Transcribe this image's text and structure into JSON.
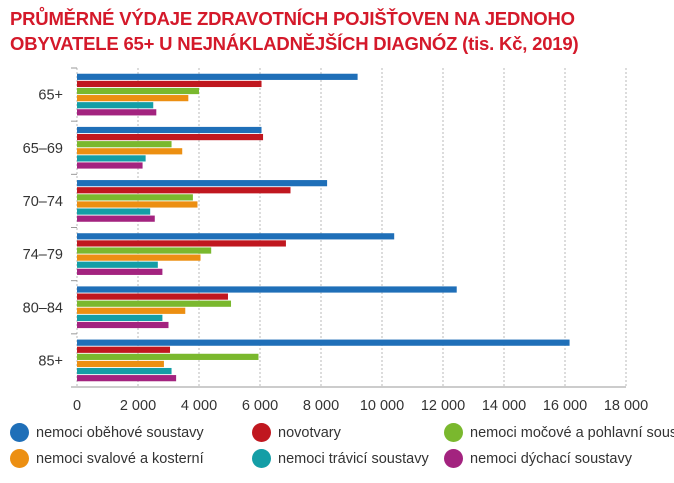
{
  "title_lines": [
    "PRŮMĚRNÉ VÝDAJE ZDRAVOTNÍCH POJIŠŤOVEN NA JEDNOHO",
    "OBYVATELE 65+ U NEJNÁKLADNĚJŠÍCH DIAGNÓZ (tis. Kč, 2019)"
  ],
  "chart_data": {
    "type": "bar",
    "orientation": "horizontal",
    "title": "PRŮMĚRNÉ VÝDAJE ZDRAVOTNÍCH POJIŠŤOVEN NA JEDNOHO OBYVATELE 65+ U NEJNÁKLADNĚJŠÍCH DIAGNÓZ (tis. Kč, 2019)",
    "categories": [
      "65+",
      "65–69",
      "70–74",
      "74–79",
      "80–84",
      "85+"
    ],
    "xlim": [
      0,
      18000
    ],
    "xticks": [
      0,
      2000,
      4000,
      6000,
      8000,
      10000,
      12000,
      14000,
      16000,
      18000
    ],
    "xtick_labels": [
      "0",
      "2 000",
      "4 000",
      "6 000",
      "8 000",
      "10 000",
      "12 000",
      "14 000",
      "16 000",
      "18 000"
    ],
    "grid": true,
    "legend_position": "bottom",
    "series": [
      {
        "name": "nemoci oběhové soustavy",
        "color": "#1f6fb8",
        "values": [
          9200,
          6050,
          8200,
          10400,
          12450,
          16150
        ]
      },
      {
        "name": "novotvary",
        "color": "#c0171f",
        "values": [
          6050,
          6100,
          7000,
          6850,
          4950,
          3050
        ]
      },
      {
        "name": "nemoci močové a pohlavní soustavy",
        "color": "#7ab82e",
        "values": [
          4000,
          3100,
          3800,
          4400,
          5050,
          5950
        ]
      },
      {
        "name": "nemoci svalové a  kosterní",
        "color": "#ec8f12",
        "values": [
          3650,
          3450,
          3950,
          4050,
          3550,
          2850
        ]
      },
      {
        "name": "nemoci trávicí soustavy",
        "color": "#149ea6",
        "values": [
          2500,
          2250,
          2400,
          2650,
          2800,
          3100
        ]
      },
      {
        "name": "nemoci dýchací soustavy",
        "color": "#a3237f",
        "values": [
          2600,
          2150,
          2550,
          2800,
          3000,
          3250
        ]
      }
    ]
  }
}
